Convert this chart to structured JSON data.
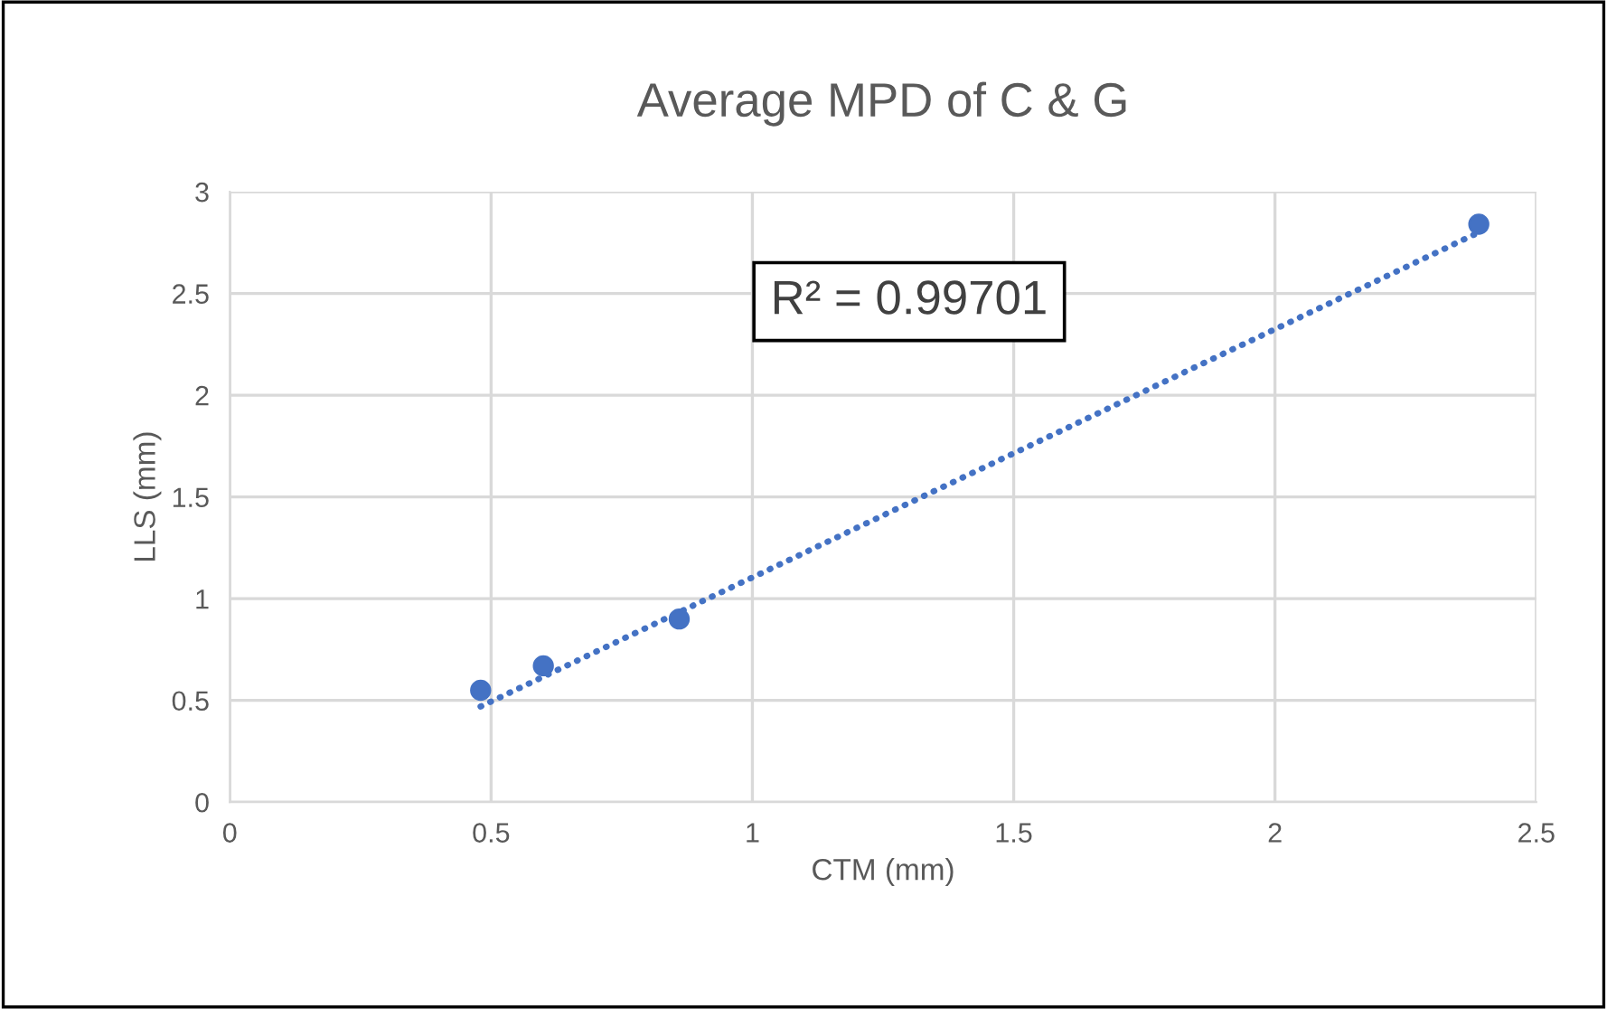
{
  "chart_data": {
    "type": "scatter",
    "title": "Average MPD of C & G",
    "xlabel": "CTM (mm)",
    "ylabel": "LLS (mm)",
    "xlim": [
      0,
      2.5
    ],
    "xticks": [
      0,
      0.5,
      1,
      1.5,
      2,
      2.5
    ],
    "ylim": [
      0,
      3
    ],
    "yticks": [
      0,
      0.5,
      1,
      1.5,
      2,
      2.5,
      3
    ],
    "grid": true,
    "series": [
      {
        "marker": "circle",
        "color": "#4472c4",
        "x": [
          0.48,
          0.6,
          0.86,
          2.39
        ],
        "values": [
          0.55,
          0.67,
          0.9,
          2.84
        ]
      },
      {
        "type": "line",
        "color": "#4472c4",
        "line_style": "dotted",
        "marker": "none",
        "x": [
          0.48,
          2.39
        ],
        "values": [
          0.47,
          2.8
        ]
      }
    ],
    "annotations": [
      "R² = 0.99701"
    ]
  }
}
